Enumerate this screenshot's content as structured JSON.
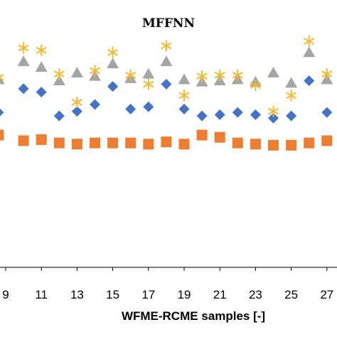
{
  "chart_data": {
    "type": "scatter",
    "title": "MFFNN",
    "xlabel": "WFME-RCME samples [-]",
    "ylabel": "",
    "xlim": [
      8.5,
      28.9
    ],
    "ylim": [
      0,
      10
    ],
    "x_ticks": [
      "9",
      "11",
      "13",
      "15",
      "17",
      "19",
      "21",
      "23",
      "25",
      "27"
    ],
    "grid": false,
    "legend": "none",
    "series": [
      {
        "marker": "square",
        "color": "#ED7D31",
        "points": [
          [
            8.6,
            5.85
          ],
          [
            10,
            5.6
          ],
          [
            11,
            5.65
          ],
          [
            12,
            5.5
          ],
          [
            13,
            5.45
          ],
          [
            14,
            5.5
          ],
          [
            15,
            5.5
          ],
          [
            16,
            5.5
          ],
          [
            17,
            5.45
          ],
          [
            18,
            5.55
          ],
          [
            19,
            5.45
          ],
          [
            20,
            5.85
          ],
          [
            21,
            5.75
          ],
          [
            22,
            5.5
          ],
          [
            23,
            5.45
          ],
          [
            24,
            5.4
          ],
          [
            25,
            5.4
          ],
          [
            26,
            5.5
          ],
          [
            27,
            5.6
          ],
          [
            28,
            5.5
          ]
        ]
      },
      {
        "marker": "diamond",
        "color": "#4472C4",
        "points": [
          [
            8.6,
            6.85
          ],
          [
            10,
            7.9
          ],
          [
            11,
            7.75
          ],
          [
            12,
            6.7
          ],
          [
            13,
            6.9
          ],
          [
            14,
            7.2
          ],
          [
            15,
            8.0
          ],
          [
            16,
            7.0
          ],
          [
            17,
            7.1
          ],
          [
            18,
            8.1
          ],
          [
            19,
            7.0
          ],
          [
            20,
            6.7
          ],
          [
            21,
            6.75
          ],
          [
            22,
            6.85
          ],
          [
            23,
            6.75
          ],
          [
            24,
            6.6
          ],
          [
            25,
            6.7
          ],
          [
            26,
            8.25
          ],
          [
            27,
            6.85
          ],
          [
            28,
            7.1
          ]
        ]
      },
      {
        "marker": "triangle",
        "color": "#A5A5A5",
        "points": [
          [
            8.6,
            8.3
          ],
          [
            10,
            9.1
          ],
          [
            11,
            8.85
          ],
          [
            12,
            8.25
          ],
          [
            13,
            8.6
          ],
          [
            14,
            8.45
          ],
          [
            15,
            9.0
          ],
          [
            16,
            8.35
          ],
          [
            17,
            8.55
          ],
          [
            18,
            9.1
          ],
          [
            19,
            8.3
          ],
          [
            20,
            8.2
          ],
          [
            21,
            8.25
          ],
          [
            22,
            8.3
          ],
          [
            23,
            8.2
          ],
          [
            24,
            8.6
          ],
          [
            25,
            8.15
          ],
          [
            26,
            9.5
          ],
          [
            27,
            8.3
          ],
          [
            28,
            8.5
          ]
        ]
      },
      {
        "marker": "asterisk",
        "color": "#F2B830",
        "points": [
          [
            8.6,
            8.4
          ],
          [
            10,
            9.7
          ],
          [
            11,
            9.6
          ],
          [
            12,
            8.55
          ],
          [
            13,
            7.3
          ],
          [
            14,
            8.7
          ],
          [
            15,
            9.5
          ],
          [
            16,
            8.5
          ],
          [
            17,
            8.1
          ],
          [
            18,
            9.8
          ],
          [
            19,
            7.6
          ],
          [
            20,
            8.45
          ],
          [
            21,
            8.5
          ],
          [
            22,
            8.5
          ],
          [
            23,
            8.05
          ],
          [
            24,
            6.9
          ],
          [
            25,
            7.6
          ],
          [
            26,
            10.0
          ],
          [
            27,
            8.55
          ],
          [
            28,
            8.95
          ]
        ]
      }
    ]
  }
}
